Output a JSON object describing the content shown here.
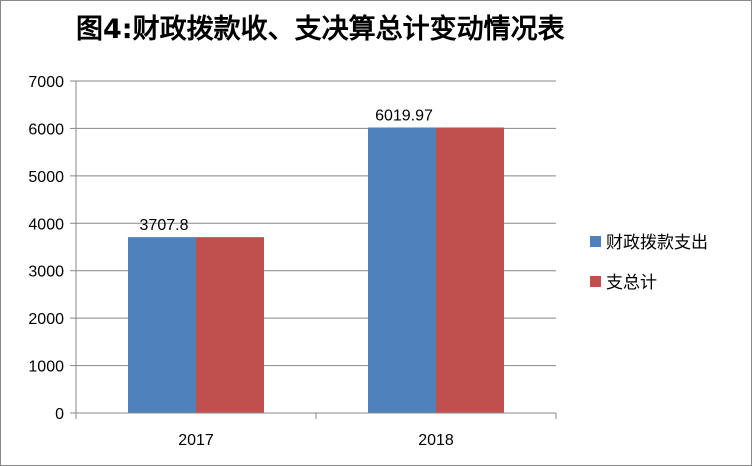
{
  "chart_data": {
    "type": "bar",
    "title": "图4:财政拨款收、支决算总计变动情况表",
    "categories": [
      "2017",
      "2018"
    ],
    "series": [
      {
        "name": "财政拨款支出",
        "values": [
          3707.8,
          6019.97
        ],
        "color": "#4F81BD"
      },
      {
        "name": "支总计",
        "values": [
          3707.8,
          6019.97
        ],
        "color": "#C0504D"
      }
    ],
    "data_labels": [
      {
        "category": "2017",
        "text": "3707.8"
      },
      {
        "category": "2018",
        "text": "6019.97"
      }
    ],
    "ylim": [
      0,
      7000
    ],
    "yticks": [
      0,
      1000,
      2000,
      3000,
      4000,
      5000,
      6000,
      7000
    ],
    "grid": true,
    "legend_position": "right",
    "xlabel": "",
    "ylabel": ""
  }
}
